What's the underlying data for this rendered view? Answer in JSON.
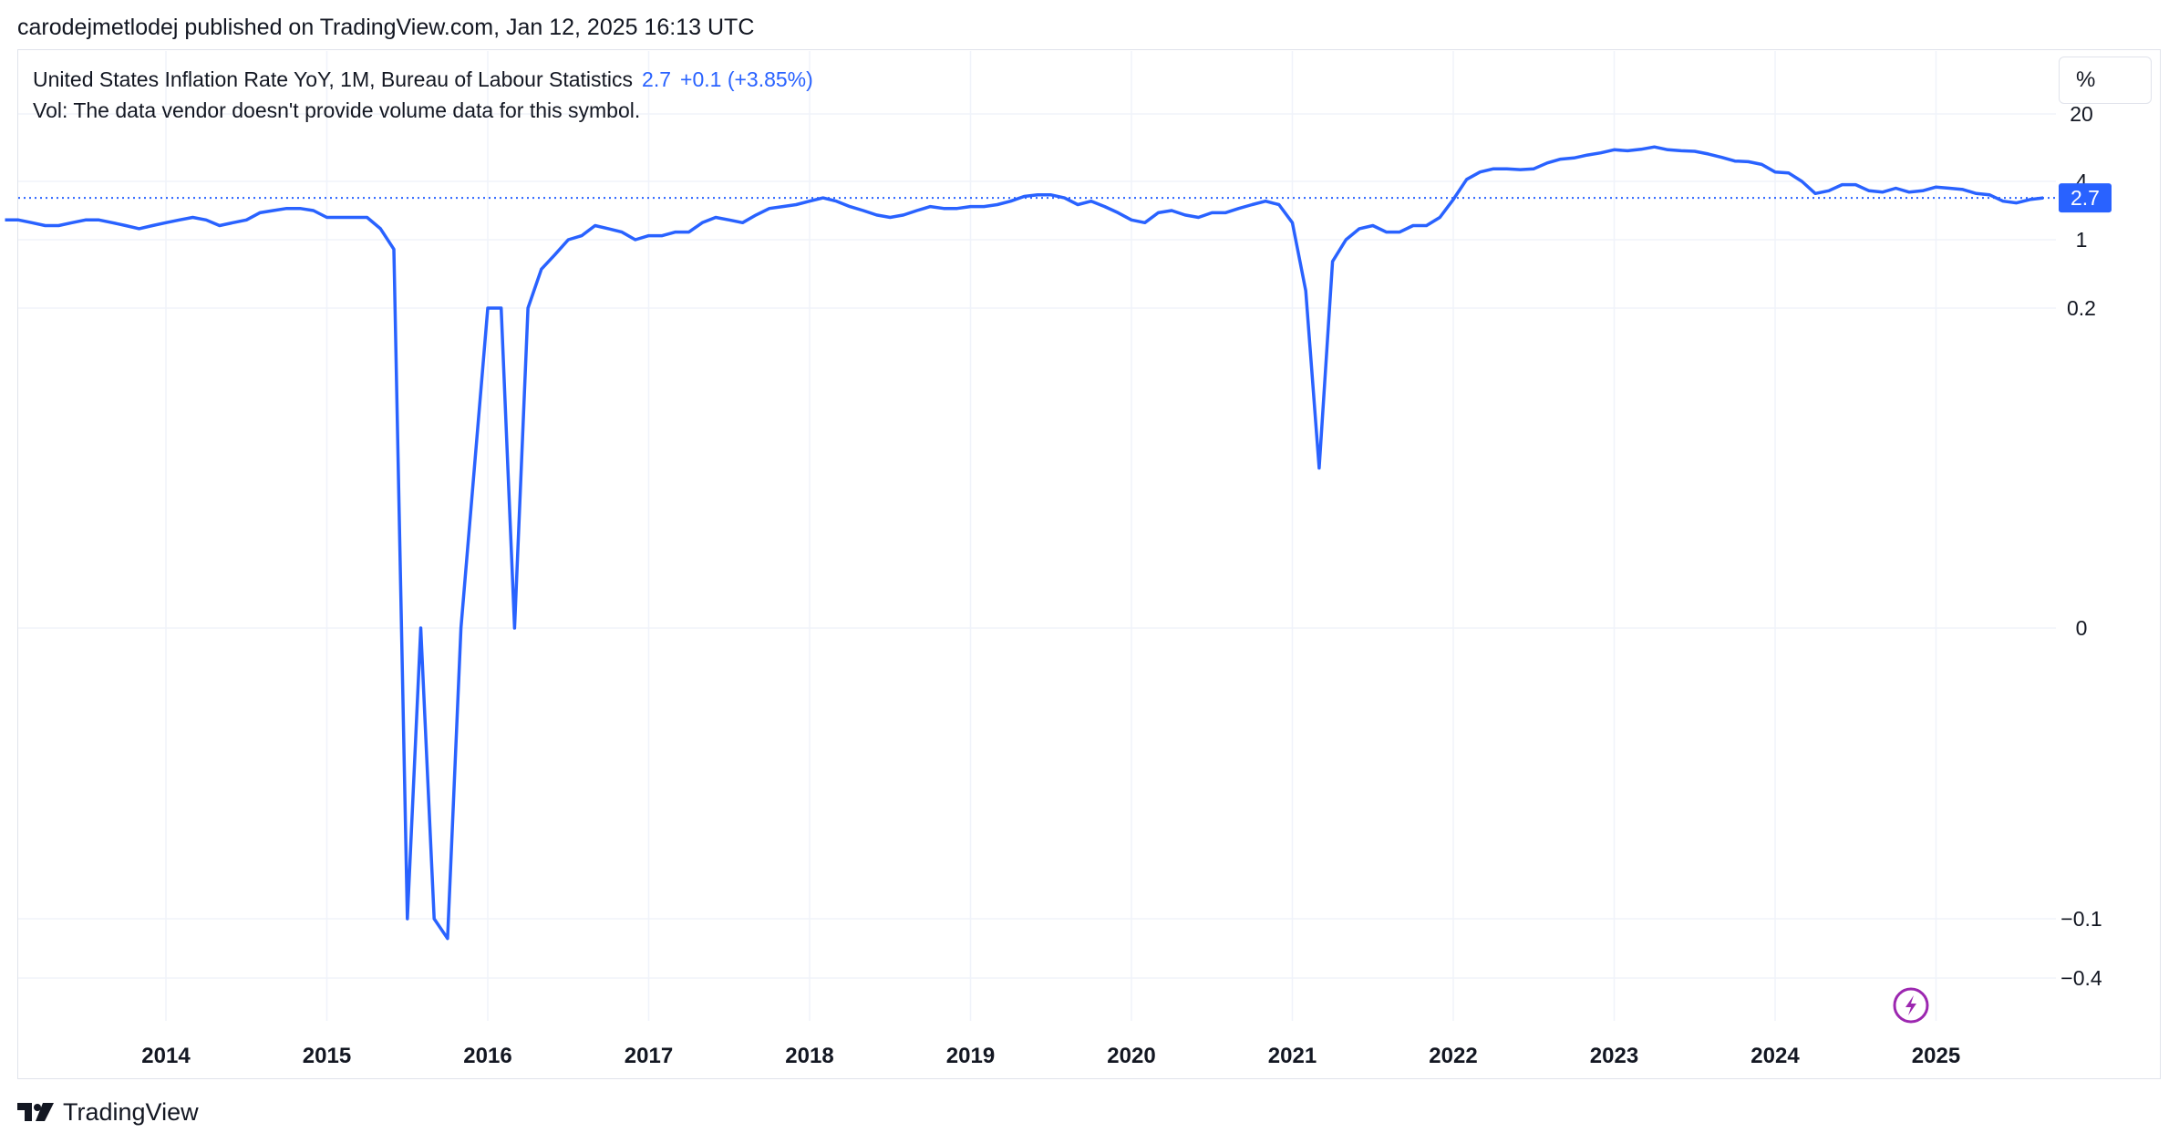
{
  "header": {
    "published": "carodejmetlodej published on TradingView.com, Jan 12, 2025 16:13 UTC"
  },
  "legend": {
    "title": "United States Inflation Rate YoY, 1M, Bureau of Labour Statistics",
    "value": "2.7",
    "change": "+0.1 (+3.85%)",
    "volume_note": "Vol: The data vendor doesn't provide volume data for this symbol."
  },
  "scale_button": {
    "label": "%"
  },
  "price_label": {
    "text": "2.7"
  },
  "brand": {
    "name": "TradingView"
  },
  "colors": {
    "series": "#2962ff",
    "grid": "#f0f3fa",
    "label_bg": "#2962ff"
  },
  "icons": {
    "brand": "tradingview-logo-icon",
    "flash": "lightning-icon"
  },
  "chart_data": {
    "type": "line",
    "yscale": "log-like",
    "y_ticks": [
      {
        "value": 20,
        "label": "20"
      },
      {
        "value": 4,
        "label": "4"
      },
      {
        "value": 1,
        "label": "1"
      },
      {
        "value": 0.2,
        "label": "0.2"
      },
      {
        "value": 0,
        "label": "0"
      },
      {
        "value": -0.1,
        "label": "−0.1"
      },
      {
        "value": -0.4,
        "label": "−0.4"
      }
    ],
    "x_ticks": [
      "2014",
      "2015",
      "2016",
      "2017",
      "2018",
      "2019",
      "2020",
      "2021",
      "2022",
      "2023",
      "2024",
      "2025"
    ],
    "last_value": 2.7,
    "series": [
      {
        "x_start": "2013-01",
        "x_step": "1M",
        "values": [
          1.6,
          1.6,
          1.5,
          1.4,
          1.4,
          1.5,
          1.6,
          1.6,
          1.5,
          1.4,
          1.3,
          1.4,
          1.5,
          1.6,
          1.7,
          1.6,
          1.4,
          1.5,
          1.6,
          1.9,
          2.0,
          2.1,
          2.1,
          2.0,
          1.7,
          1.7,
          1.7,
          1.7,
          1.3,
          0.8,
          -0.1,
          0.0,
          -0.1,
          -0.2,
          0.0,
          0.1,
          0.2,
          0.2,
          0.0,
          0.2,
          0.5,
          0.7,
          1.0,
          1.1,
          1.4,
          1.3,
          1.2,
          1.0,
          1.1,
          1.1,
          1.2,
          1.2,
          1.5,
          1.7,
          1.6,
          1.5,
          1.8,
          2.1,
          2.2,
          2.3,
          2.5,
          2.7,
          2.5,
          2.2,
          2.0,
          1.8,
          1.7,
          1.8,
          2.0,
          2.2,
          2.1,
          2.1,
          2.2,
          2.2,
          2.3,
          2.5,
          2.8,
          2.9,
          2.9,
          2.7,
          2.3,
          2.5,
          2.2,
          1.9,
          1.6,
          1.5,
          1.9,
          2.0,
          1.8,
          1.7,
          1.9,
          1.9,
          2.1,
          2.3,
          2.5,
          2.3,
          1.5,
          0.3,
          0.1,
          0.6,
          1.0,
          1.3,
          1.4,
          1.2,
          1.2,
          1.4,
          1.4,
          1.7,
          2.6,
          4.2,
          5.0,
          5.4,
          5.4,
          5.3,
          5.4,
          6.2,
          6.8,
          7.0,
          7.5,
          7.9,
          8.5,
          8.3,
          8.6,
          9.1,
          8.5,
          8.3,
          8.2,
          7.7,
          7.1,
          6.5,
          6.4,
          6.0,
          5.0,
          4.9,
          4.0,
          3.0,
          3.2,
          3.7,
          3.7,
          3.2,
          3.1,
          3.4,
          3.1,
          3.2,
          3.5,
          3.4,
          3.3,
          3.0,
          2.9,
          2.5,
          2.4,
          2.6,
          2.7
        ]
      }
    ]
  }
}
